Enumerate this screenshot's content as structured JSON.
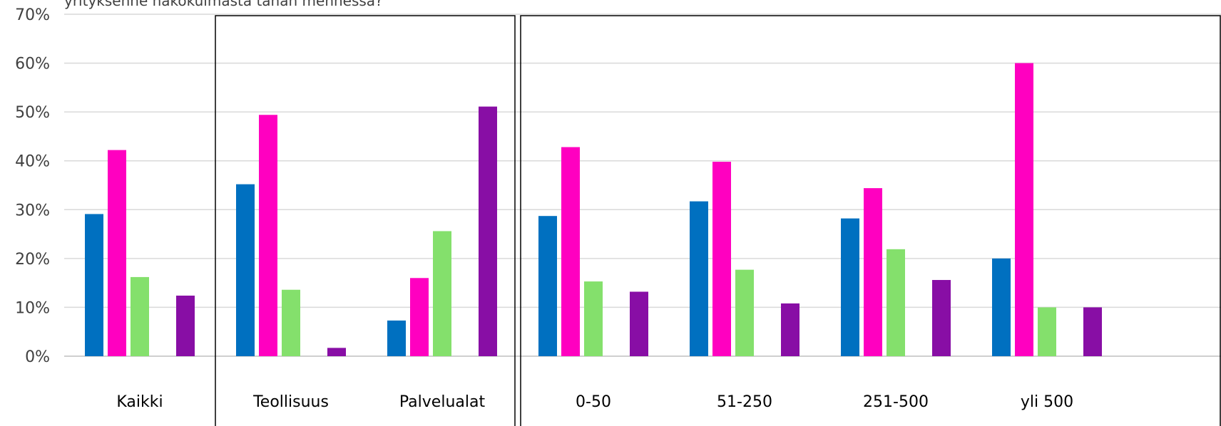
{
  "chart_data": {
    "type": "bar",
    "title": "yrityksenne näkökulmasta tähän mennessä?",
    "categories": [
      "Kaikki",
      "Teollisuus",
      "Palvelualat",
      "0-50",
      "51-250",
      "251-500",
      "yli 500"
    ],
    "groups": [
      [
        "Kaikki"
      ],
      [
        "Teollisuus",
        "Palvelualat"
      ],
      [
        "0-50",
        "51-250",
        "251-500",
        "yli 500"
      ]
    ],
    "series": [
      {
        "color": "#0070C0",
        "values": [
          29.1,
          35.2,
          7.3,
          28.7,
          31.7,
          28.2,
          20.0
        ]
      },
      {
        "color": "#FF00C0",
        "values": [
          42.2,
          49.4,
          16.0,
          42.8,
          39.8,
          34.4,
          60.0
        ]
      },
      {
        "color": "#84E06C",
        "values": [
          16.2,
          13.6,
          25.6,
          15.3,
          17.7,
          21.9,
          10.0
        ]
      },
      {
        "color": "#FFFFFF",
        "values": [
          0,
          0,
          0,
          0,
          0,
          0,
          0
        ]
      },
      {
        "color": "#880EA5",
        "values": [
          12.4,
          1.7,
          51.1,
          13.2,
          10.8,
          15.6,
          10.0
        ]
      }
    ],
    "ylim": [
      0,
      70
    ],
    "yticks": [
      "0%",
      "10%",
      "20%",
      "30%",
      "40%",
      "50%",
      "60%",
      "70%"
    ],
    "grid": true,
    "legend": "none"
  },
  "colors": {
    "grid": "#D9D9D9",
    "divider": "#000000"
  }
}
